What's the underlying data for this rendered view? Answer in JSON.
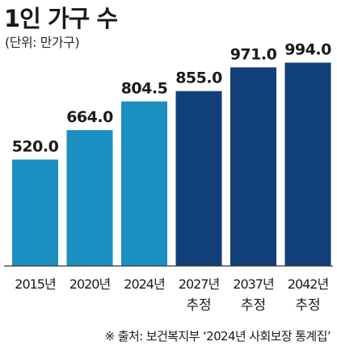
{
  "title": "1인 가구 수",
  "unit": "(단위: 만가구)",
  "source": "※ 출처: 보건복지부 ‘2024년 사회보장 통계집’",
  "colors": {
    "actual": "#1a8fc0",
    "projected": "#113f78",
    "axis": "#333333",
    "text": "#1a1a1a"
  },
  "chart_data": {
    "type": "bar",
    "categories": [
      "2015년",
      "2020년",
      "2024년",
      "2027년 추정",
      "2037년 추정",
      "2042년 추정"
    ],
    "values": [
      520.0,
      664.0,
      804.5,
      855.0,
      971.0,
      994.0
    ],
    "value_labels": [
      "520.0",
      "664.0",
      "804.5",
      "855.0",
      "971.0",
      "994.0"
    ],
    "year_labels": [
      "2015년",
      "2020년",
      "2024년",
      "2027년",
      "2037년",
      "2042년"
    ],
    "sub_labels": [
      "",
      "",
      "",
      "추정",
      "추정",
      "추정"
    ],
    "projected": [
      false,
      false,
      false,
      true,
      true,
      true
    ],
    "ylim": [
      0,
      1000
    ],
    "grid": false,
    "title": "1인 가구 수",
    "xlabel": "",
    "ylabel": ""
  }
}
